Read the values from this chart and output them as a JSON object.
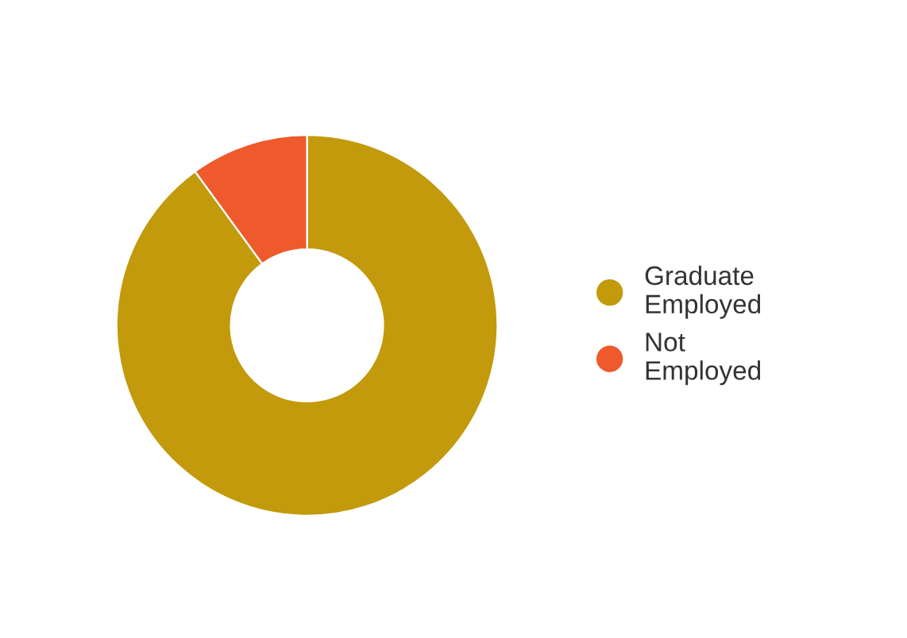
{
  "chart_data": {
    "type": "donut",
    "categories": [
      "Graduate\nEmployed",
      "Not\nEmployed"
    ],
    "values": [
      90,
      10
    ],
    "colors": [
      "#c29a0c",
      "#ee5a2c"
    ],
    "legend": "right"
  }
}
